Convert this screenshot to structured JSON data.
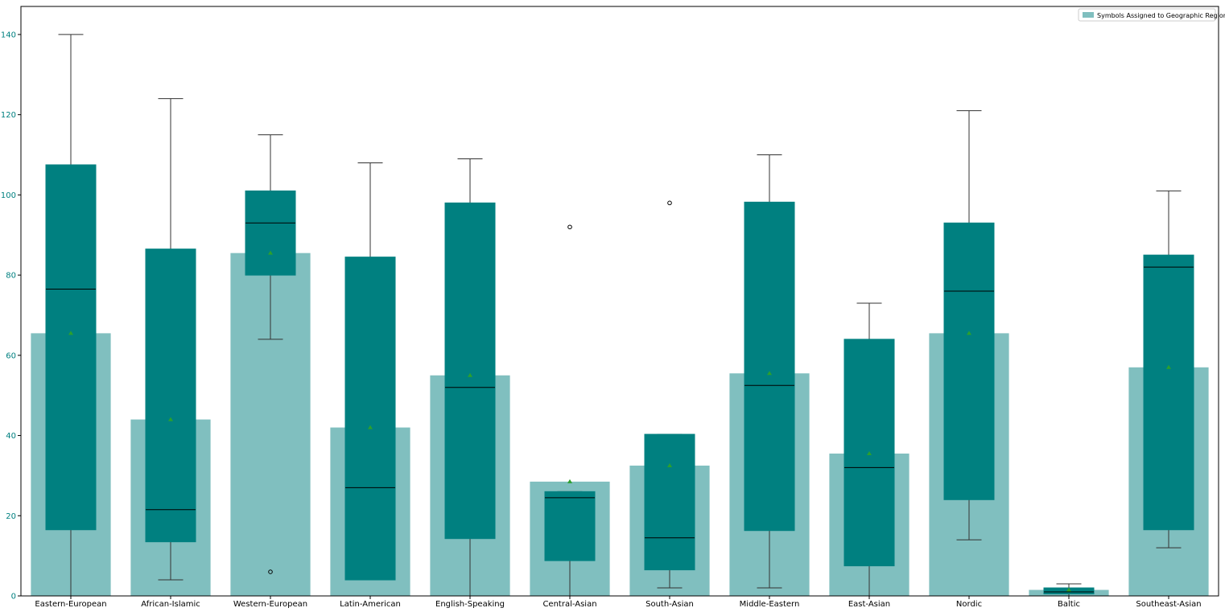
{
  "chart_data": {
    "type": "bar",
    "title": "",
    "xlabel": "",
    "ylabel": "",
    "ylim": [
      0,
      147
    ],
    "yticks": [
      0,
      20,
      40,
      60,
      80,
      100,
      120,
      140
    ],
    "categories": [
      "Eastern-European",
      "African-Islamic",
      "Western-European",
      "Latin-American",
      "English-Speaking",
      "Central-Asian",
      "South-Asian",
      "Middle-Eastern",
      "East-Asian",
      "Nordic",
      "Baltic",
      "Southeast-Asian"
    ],
    "series": [
      {
        "name": "Symbols Assigned to Geographic Region",
        "values": [
          65.5,
          44,
          85.5,
          42,
          55,
          28.5,
          32.5,
          55.5,
          35.5,
          65.5,
          1.5,
          57
        ]
      }
    ],
    "boxplots": [
      {
        "category": "Eastern-European",
        "whisker_low": 0,
        "q1": 16.5,
        "median": 76.5,
        "q3": 107.5,
        "whisker_high": 140,
        "mean": 65.5,
        "outliers": []
      },
      {
        "category": "African-Islamic",
        "whisker_low": 4,
        "q1": 13.5,
        "median": 21.5,
        "q3": 86.5,
        "whisker_high": 124,
        "mean": 44,
        "outliers": []
      },
      {
        "category": "Western-European",
        "whisker_low": 64,
        "q1": 80,
        "median": 93,
        "q3": 101,
        "whisker_high": 115,
        "mean": 85.5,
        "outliers": [
          6
        ]
      },
      {
        "category": "Latin-American",
        "whisker_low": 4,
        "q1": 4,
        "median": 27,
        "q3": 84.5,
        "whisker_high": 108,
        "mean": 42,
        "outliers": []
      },
      {
        "category": "English-Speaking",
        "whisker_low": 0,
        "q1": 14.3,
        "median": 52,
        "q3": 98,
        "whisker_high": 109,
        "mean": 55,
        "outliers": []
      },
      {
        "category": "Central-Asian",
        "whisker_low": 0,
        "q1": 8.8,
        "median": 24.5,
        "q3": 26,
        "whisker_high": 26,
        "mean": 28.5,
        "outliers": [
          92
        ]
      },
      {
        "category": "South-Asian",
        "whisker_low": 2,
        "q1": 6.5,
        "median": 14.5,
        "q3": 40.3,
        "whisker_high": 40.3,
        "mean": 32.5,
        "outliers": [
          98
        ]
      },
      {
        "category": "Middle-Eastern",
        "whisker_low": 2,
        "q1": 16.3,
        "median": 52.5,
        "q3": 98.2,
        "whisker_high": 110,
        "mean": 55.5,
        "outliers": []
      },
      {
        "category": "East-Asian",
        "whisker_low": 0,
        "q1": 7.5,
        "median": 32,
        "q3": 64,
        "whisker_high": 73,
        "mean": 35.5,
        "outliers": []
      },
      {
        "category": "Nordic",
        "whisker_low": 14,
        "q1": 24,
        "median": 76,
        "q3": 93,
        "whisker_high": 121,
        "mean": 65.5,
        "outliers": []
      },
      {
        "category": "Baltic",
        "whisker_low": 0,
        "q1": 0.5,
        "median": 1,
        "q3": 2,
        "whisker_high": 3,
        "mean": 1.5,
        "outliers": []
      },
      {
        "category": "Southeast-Asian",
        "whisker_low": 12,
        "q1": 16.5,
        "median": 82,
        "q3": 85,
        "whisker_high": 101,
        "mean": 57,
        "outliers": []
      }
    ],
    "legend": {
      "placement": "top-right",
      "entries": [
        "Symbols Assigned to Geographic Region"
      ]
    },
    "grid": false,
    "colors": {
      "bar": "#80bfbf",
      "box": "#008080",
      "median": "#000000",
      "whisker": "#333333",
      "mean_marker": "#2ca02c",
      "ytick": "#008080",
      "axes": "#000000"
    }
  }
}
